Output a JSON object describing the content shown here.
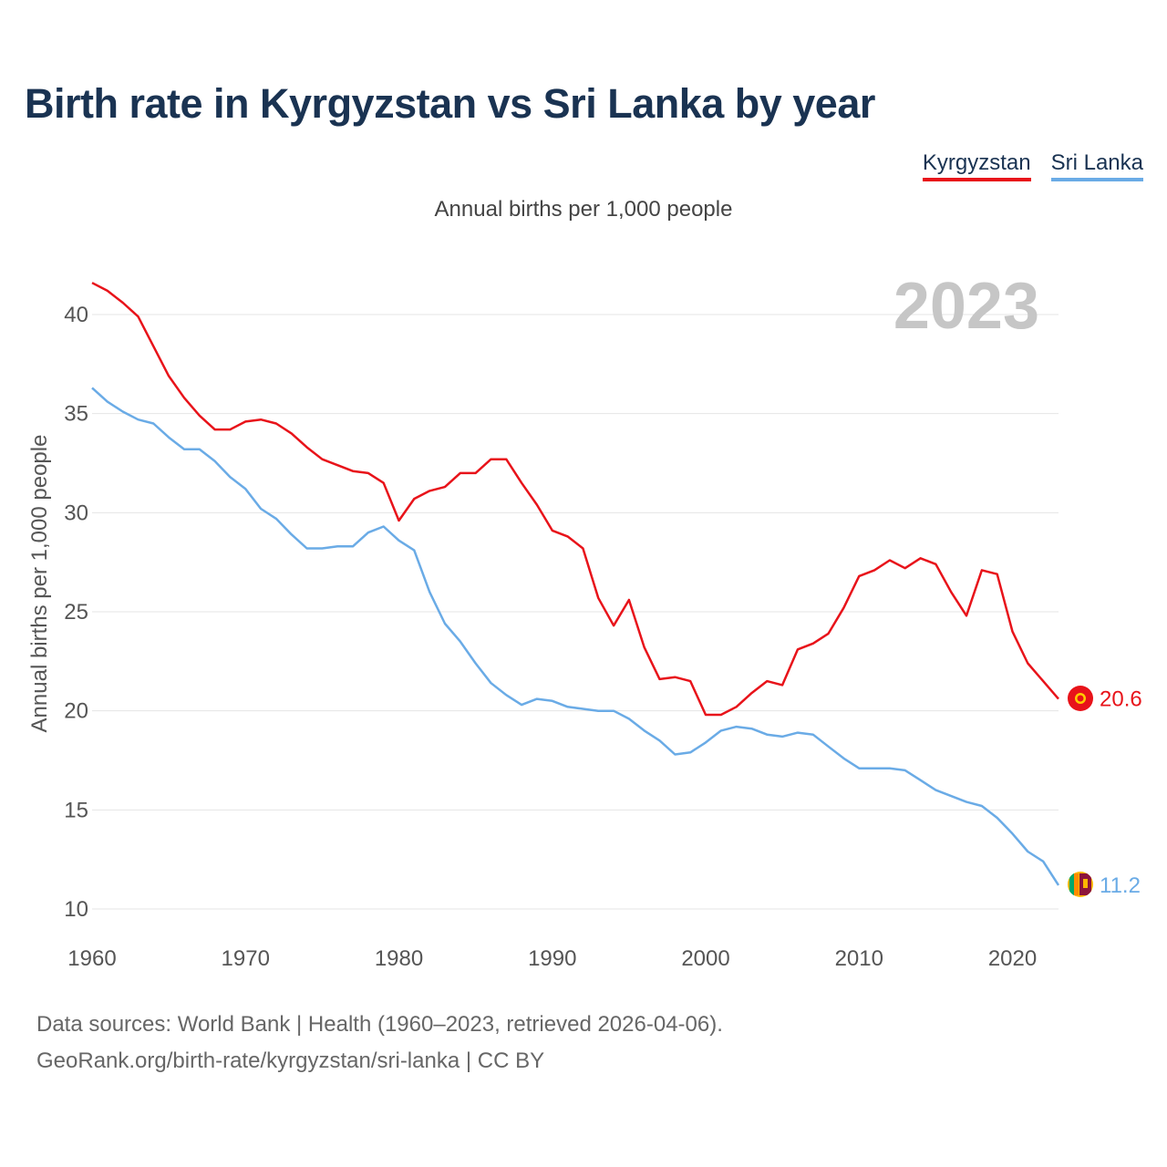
{
  "title": "Birth rate in Kyrgyzstan vs Sri Lanka by year",
  "legend": {
    "kyrgyzstan": "Kyrgyzstan",
    "sri_lanka": "Sri Lanka"
  },
  "subtitle": "Annual births per 1,000 people",
  "footer": {
    "line1": "Data sources: World Bank | Health (1960–2023, retrieved 2026-04-06).",
    "line2": "GeoRank.org/birth-rate/kyrgyzstan/sri-lanka | CC BY"
  },
  "colors": {
    "kyrgyzstan": "#e8131a",
    "sri_lanka": "#6aabe6",
    "grid": "#e4e4e4",
    "year_watermark": "#c6c6c6"
  },
  "chart_data": {
    "type": "line",
    "title": "Birth rate in Kyrgyzstan vs Sri Lanka by year",
    "xlabel": "",
    "ylabel": "Annual births per 1,000 people",
    "year_label": "2023",
    "xlim": [
      1960,
      2023
    ],
    "ylim": [
      10,
      42
    ],
    "x_ticks": [
      1960,
      1970,
      1980,
      1990,
      2000,
      2010,
      2020
    ],
    "y_ticks": [
      10,
      15,
      20,
      25,
      30,
      35,
      40
    ],
    "x": [
      1960,
      1961,
      1962,
      1963,
      1964,
      1965,
      1966,
      1967,
      1968,
      1969,
      1970,
      1971,
      1972,
      1973,
      1974,
      1975,
      1976,
      1977,
      1978,
      1979,
      1980,
      1981,
      1982,
      1983,
      1984,
      1985,
      1986,
      1987,
      1988,
      1989,
      1990,
      1991,
      1992,
      1993,
      1994,
      1995,
      1996,
      1997,
      1998,
      1999,
      2000,
      2001,
      2002,
      2003,
      2004,
      2005,
      2006,
      2007,
      2008,
      2009,
      2010,
      2011,
      2012,
      2013,
      2014,
      2015,
      2016,
      2017,
      2018,
      2019,
      2020,
      2021,
      2022,
      2023
    ],
    "series": [
      {
        "name": "Kyrgyzstan",
        "end_label": "20.6",
        "values": [
          41.6,
          41.2,
          40.6,
          39.9,
          38.4,
          36.9,
          35.8,
          34.9,
          34.2,
          34.2,
          34.6,
          34.7,
          34.5,
          34.0,
          33.3,
          32.7,
          32.4,
          32.1,
          32.0,
          31.5,
          29.6,
          30.7,
          31.1,
          31.3,
          32.0,
          32.0,
          32.7,
          32.7,
          31.5,
          30.4,
          29.1,
          28.8,
          28.2,
          25.7,
          24.3,
          25.6,
          23.2,
          21.6,
          21.7,
          21.5,
          19.8,
          19.8,
          20.2,
          20.9,
          21.5,
          21.3,
          23.1,
          23.4,
          23.9,
          25.2,
          26.8,
          27.1,
          27.6,
          27.2,
          27.7,
          27.4,
          26.0,
          24.8,
          27.1,
          26.9,
          24.0,
          22.4,
          21.5,
          20.6
        ]
      },
      {
        "name": "Sri Lanka",
        "end_label": "11.2",
        "values": [
          36.3,
          35.6,
          35.1,
          34.7,
          34.5,
          33.8,
          33.2,
          33.2,
          32.6,
          31.8,
          31.2,
          30.2,
          29.7,
          28.9,
          28.2,
          28.2,
          28.3,
          28.3,
          29.0,
          29.3,
          28.6,
          28.1,
          26.0,
          24.4,
          23.5,
          22.4,
          21.4,
          20.8,
          20.3,
          20.6,
          20.5,
          20.2,
          20.1,
          20.0,
          20.0,
          19.6,
          19.0,
          18.5,
          17.8,
          17.9,
          18.4,
          19.0,
          19.2,
          19.1,
          18.8,
          18.7,
          18.9,
          18.8,
          18.2,
          17.6,
          17.1,
          17.1,
          17.1,
          17.0,
          16.5,
          16.0,
          15.7,
          15.4,
          15.2,
          14.6,
          13.8,
          12.9,
          12.4,
          11.2
        ]
      }
    ]
  }
}
